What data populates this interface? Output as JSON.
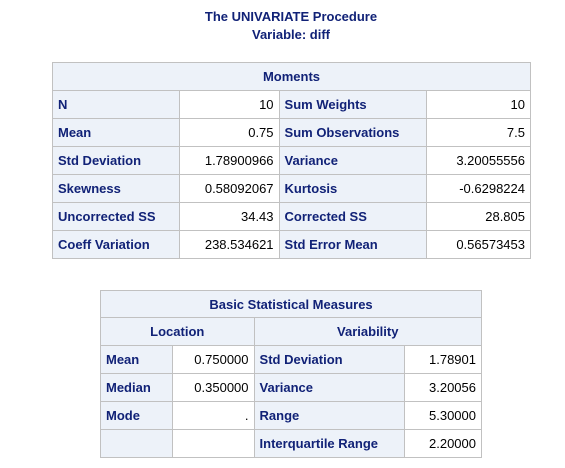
{
  "header": {
    "procedure_title": "The UNIVARIATE Procedure",
    "variable_line": "Variable: diff"
  },
  "moments": {
    "caption": "Moments",
    "rows": [
      {
        "label1": "N",
        "value1": "10",
        "label2": "Sum Weights",
        "value2": "10"
      },
      {
        "label1": "Mean",
        "value1": "0.75",
        "label2": "Sum Observations",
        "value2": "7.5"
      },
      {
        "label1": "Std Deviation",
        "value1": "1.78900966",
        "label2": "Variance",
        "value2": "3.20055556"
      },
      {
        "label1": "Skewness",
        "value1": "0.58092067",
        "label2": "Kurtosis",
        "value2": "-0.6298224"
      },
      {
        "label1": "Uncorrected SS",
        "value1": "34.43",
        "label2": "Corrected SS",
        "value2": "28.805"
      },
      {
        "label1": "Coeff Variation",
        "value1": "238.534621",
        "label2": "Std Error Mean",
        "value2": "0.56573453"
      }
    ]
  },
  "basic_measures": {
    "caption": "Basic Statistical Measures",
    "location_header": "Location",
    "variability_header": "Variability",
    "rows": [
      {
        "loc_label": "Mean",
        "loc_value": "0.750000",
        "var_label": "Std Deviation",
        "var_value": "1.78901"
      },
      {
        "loc_label": "Median",
        "loc_value": "0.350000",
        "var_label": "Variance",
        "var_value": "3.20056"
      },
      {
        "loc_label": "Mode",
        "loc_value": ".",
        "var_label": "Range",
        "var_value": "5.30000"
      },
      {
        "loc_label": "",
        "loc_value": "",
        "var_label": "Interquartile Range",
        "var_value": "2.20000"
      }
    ]
  },
  "colors": {
    "header_text": "#112277",
    "header_bg": "#edf2f9",
    "border": "#c1c1c1"
  }
}
